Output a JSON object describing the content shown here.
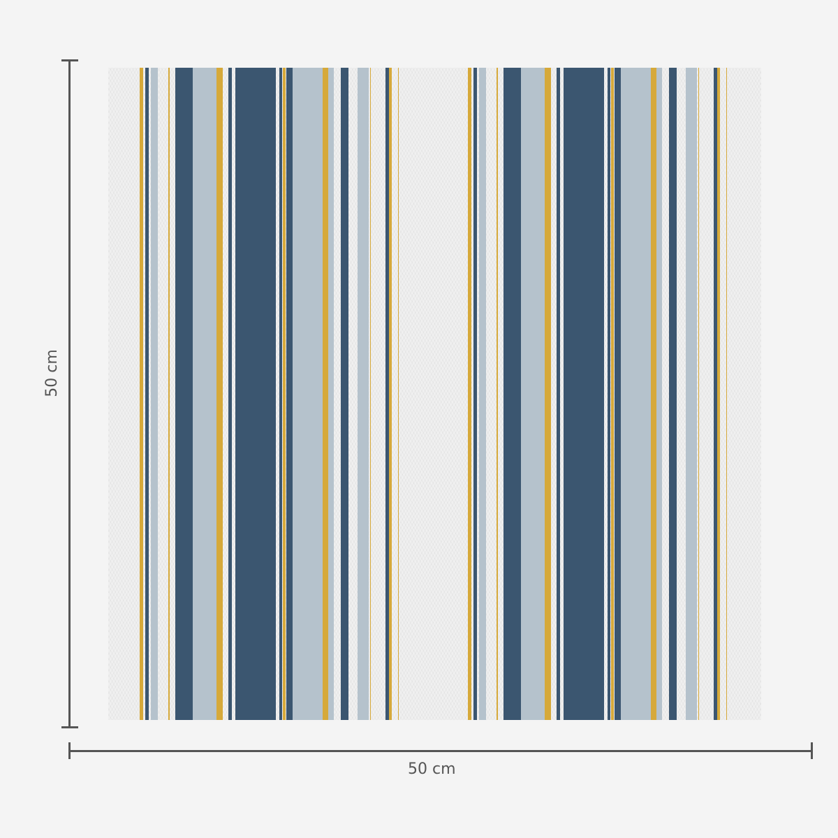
{
  "dimensions": {
    "height_label": "50 cm",
    "width_label": "50 cm"
  },
  "colors": {
    "background": "#f4f4f4",
    "fabric_base": "#f0f0f0",
    "navy": "#3b5670",
    "light_blue_grey": "#b5c2cc",
    "mustard": "#d6a93a",
    "dimension_line": "#555555"
  }
}
